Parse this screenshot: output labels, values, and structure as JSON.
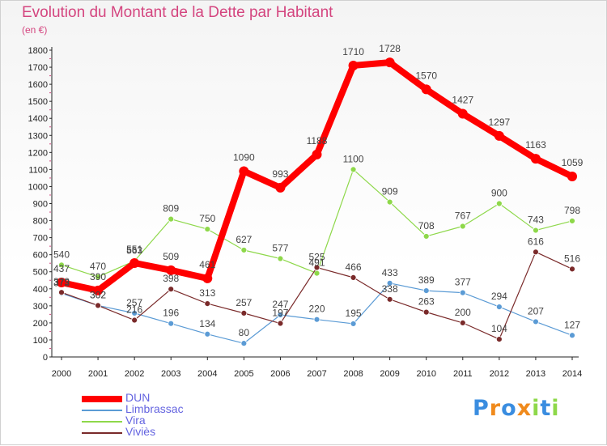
{
  "title": "Evolution du Montant de la Dette par Habitant",
  "subtitle": "(en €)",
  "logo_text": "Proxiti",
  "colors": {
    "DUN": "#ff0000",
    "Limbrassac": "#5b9bd5",
    "Vira": "#8ed84a",
    "Viviès": "#7a2a2a",
    "title": "#d4457f",
    "legend_text": "#6464e0"
  },
  "chart_data": {
    "type": "line",
    "title": "Evolution du Montant de la Dette par Habitant",
    "subtitle": "(en €)",
    "x": [
      "2000",
      "2001",
      "2002",
      "2003",
      "2004",
      "2005",
      "2006",
      "2007",
      "2008",
      "2009",
      "2010",
      "2011",
      "2012",
      "2013",
      "2014"
    ],
    "ylim": [
      0,
      1800
    ],
    "yticks": [
      0,
      100,
      200,
      300,
      400,
      500,
      600,
      700,
      800,
      900,
      1000,
      1100,
      1200,
      1300,
      1400,
      1500,
      1600,
      1700,
      1800
    ],
    "grid": false,
    "legend_position": "bottom-left",
    "series": [
      {
        "name": "DUN",
        "values": [
          437,
          390,
          551,
          509,
          461,
          1090,
          993,
          1188,
          1710,
          1728,
          1570,
          1427,
          1297,
          1163,
          1059
        ]
      },
      {
        "name": "Limbrassac",
        "values": [
          373,
          302,
          257,
          196,
          134,
          80,
          247,
          220,
          195,
          433,
          389,
          377,
          294,
          207,
          127
        ]
      },
      {
        "name": "Vira",
        "values": [
          540,
          470,
          563,
          809,
          750,
          627,
          577,
          491,
          1100,
          909,
          708,
          767,
          900,
          743,
          798
        ]
      },
      {
        "name": "Viviès",
        "values": [
          379,
          302,
          216,
          398,
          313,
          257,
          197,
          525,
          466,
          338,
          263,
          200,
          104,
          616,
          516
        ]
      }
    ],
    "labels": {
      "DUN": [
        "437",
        "390",
        "551",
        "509",
        "461",
        "1090",
        "993",
        "1188",
        "1710",
        "1728",
        "1570",
        "1427",
        "1297",
        "1163",
        "1059"
      ],
      "Limbrassac": [
        "373",
        "302",
        "257",
        "196",
        "134",
        "80",
        "247",
        "220",
        "195",
        "433",
        "389",
        "377",
        "294",
        "207",
        "127"
      ],
      "Vira": [
        "540",
        "470",
        "563",
        "809",
        "750",
        "627",
        "577",
        "491",
        "1100",
        "909",
        "708",
        "767",
        "900",
        "743",
        "798"
      ],
      "Viviès": [
        "379",
        "302",
        "216",
        "398",
        "313",
        "257",
        "197",
        "525",
        "466",
        "338",
        "263",
        "200",
        "104",
        "616",
        "516"
      ]
    }
  }
}
